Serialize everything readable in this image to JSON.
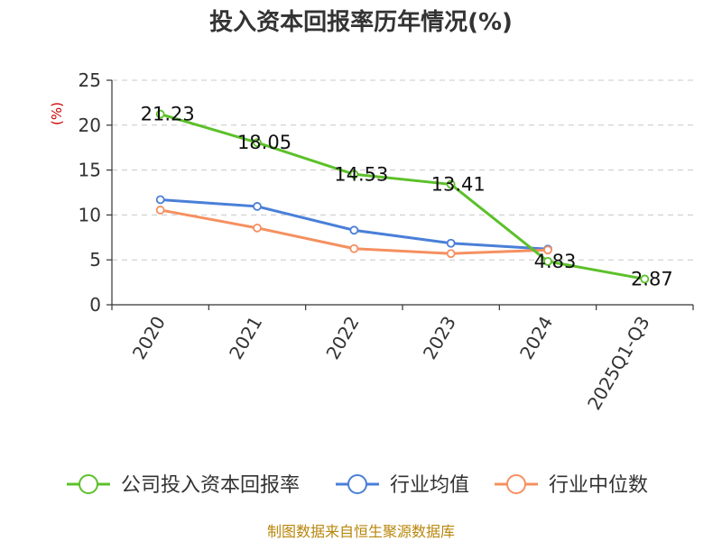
{
  "chart_data": {
    "type": "line",
    "title": "投入资本回报率历年情况(%)",
    "ylabel": "(%)",
    "categories": [
      "2020",
      "2021",
      "2022",
      "2023",
      "2024",
      "2025Q1-Q3"
    ],
    "ylim": [
      0,
      25
    ],
    "yticks": [
      0,
      5,
      10,
      15,
      20,
      25
    ],
    "grid": true,
    "legend_position": "bottom",
    "series": [
      {
        "name": "公司投入资本回报率",
        "color": "#5cc02a",
        "values": [
          21.23,
          18.05,
          14.53,
          13.41,
          4.83,
          2.87
        ],
        "labels": [
          "21.23",
          "18.05",
          "14.53",
          "13.41",
          "4.83",
          "2.87"
        ]
      },
      {
        "name": "行业均值",
        "color": "#4a7fd8",
        "values": [
          11.7,
          10.95,
          8.3,
          6.85,
          6.2,
          null
        ]
      },
      {
        "name": "行业中位数",
        "color": "#f59060",
        "values": [
          10.55,
          8.55,
          6.25,
          5.7,
          6.1,
          null
        ]
      }
    ],
    "source": "制图数据来自恒生聚源数据库"
  }
}
